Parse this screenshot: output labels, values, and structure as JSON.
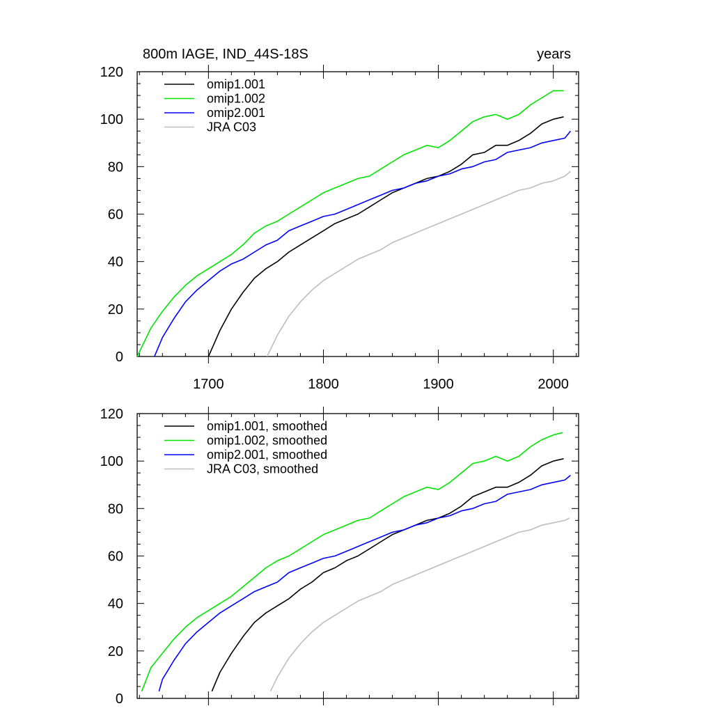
{
  "chart_data": [
    {
      "type": "line",
      "title": "800m IAGE, IND_44S-18S",
      "title_right": "years",
      "xlabel": "",
      "ylabel": "",
      "xlim": [
        1638,
        2022
      ],
      "ylim": [
        0,
        120
      ],
      "xticks": [
        1700,
        1800,
        1900,
        2000
      ],
      "yticks": [
        0,
        20,
        40,
        60,
        80,
        100,
        120
      ],
      "grid": false,
      "legend_position": "top-left",
      "series": [
        {
          "name": "omip1.001",
          "color": "#000000",
          "x": [
            1700,
            1710,
            1720,
            1730,
            1740,
            1750,
            1760,
            1770,
            1780,
            1790,
            1800,
            1810,
            1820,
            1830,
            1840,
            1850,
            1860,
            1870,
            1880,
            1890,
            1900,
            1910,
            1920,
            1930,
            1940,
            1950,
            1960,
            1970,
            1980,
            1990,
            2000,
            2009
          ],
          "y": [
            0,
            11,
            20,
            27,
            33,
            37,
            40,
            44,
            47,
            50,
            53,
            56,
            58,
            60,
            63,
            66,
            69,
            71,
            73,
            75,
            76,
            78,
            81,
            85,
            86,
            89,
            89,
            91,
            94,
            98,
            100,
            101
          ]
        },
        {
          "name": "omip1.002",
          "color": "#00e400",
          "x": [
            1638,
            1650,
            1660,
            1670,
            1680,
            1690,
            1700,
            1710,
            1720,
            1730,
            1740,
            1750,
            1760,
            1770,
            1780,
            1790,
            1800,
            1810,
            1820,
            1830,
            1840,
            1850,
            1860,
            1870,
            1880,
            1890,
            1900,
            1910,
            1920,
            1930,
            1940,
            1950,
            1960,
            1970,
            1980,
            1990,
            2000,
            2009
          ],
          "y": [
            0,
            12,
            19,
            25,
            30,
            34,
            37,
            40,
            43,
            47,
            52,
            55,
            57,
            60,
            63,
            66,
            69,
            71,
            73,
            75,
            76,
            79,
            82,
            85,
            87,
            89,
            88,
            91,
            95,
            99,
            101,
            102,
            100,
            102,
            106,
            109,
            112,
            112
          ]
        },
        {
          "name": "omip2.001",
          "color": "#0000ff",
          "x": [
            1653,
            1660,
            1670,
            1680,
            1690,
            1700,
            1710,
            1720,
            1730,
            1740,
            1750,
            1760,
            1770,
            1780,
            1790,
            1800,
            1810,
            1820,
            1830,
            1840,
            1850,
            1860,
            1870,
            1880,
            1890,
            1900,
            1910,
            1920,
            1930,
            1940,
            1950,
            1960,
            1970,
            1980,
            1990,
            2000,
            2010,
            2015
          ],
          "y": [
            0,
            8,
            16,
            23,
            28,
            32,
            36,
            39,
            41,
            44,
            47,
            49,
            53,
            55,
            57,
            59,
            60,
            62,
            64,
            66,
            68,
            70,
            71,
            73,
            74,
            76,
            77,
            79,
            80,
            82,
            83,
            86,
            87,
            88,
            90,
            91,
            92,
            95
          ]
        },
        {
          "name": "JRA C03",
          "color": "#bdbdbd",
          "x": [
            1751,
            1760,
            1770,
            1780,
            1790,
            1800,
            1810,
            1820,
            1830,
            1840,
            1850,
            1860,
            1870,
            1880,
            1890,
            1900,
            1910,
            1920,
            1930,
            1940,
            1950,
            1960,
            1970,
            1980,
            1990,
            2000,
            2010,
            2015
          ],
          "y": [
            0,
            9,
            17,
            23,
            28,
            32,
            35,
            38,
            41,
            43,
            45,
            48,
            50,
            52,
            54,
            56,
            58,
            60,
            62,
            64,
            66,
            68,
            70,
            71,
            73,
            74,
            76,
            78
          ]
        }
      ]
    },
    {
      "type": "line",
      "title": "",
      "xlabel": "",
      "ylabel": "",
      "xlim": [
        1638,
        2022
      ],
      "ylim": [
        0,
        120
      ],
      "xticks": [
        1700,
        1800,
        1900,
        2000
      ],
      "yticks": [
        0,
        20,
        40,
        60,
        80,
        100,
        120
      ],
      "grid": false,
      "legend_position": "top-left",
      "series": [
        {
          "name": "omip1.001, smoothed",
          "color": "#000000",
          "x": [
            1703,
            1710,
            1720,
            1730,
            1740,
            1750,
            1760,
            1770,
            1780,
            1790,
            1800,
            1810,
            1820,
            1830,
            1840,
            1850,
            1860,
            1870,
            1880,
            1890,
            1900,
            1910,
            1920,
            1930,
            1940,
            1950,
            1960,
            1970,
            1980,
            1990,
            2000,
            2009
          ],
          "y": [
            3,
            11,
            19,
            26,
            32,
            36,
            39,
            42,
            46,
            49,
            53,
            55,
            58,
            60,
            63,
            66,
            69,
            71,
            73,
            75,
            76,
            78,
            81,
            85,
            87,
            89,
            89,
            91,
            94,
            98,
            100,
            101
          ]
        },
        {
          "name": "omip1.002, smoothed",
          "color": "#00e400",
          "x": [
            1642,
            1650,
            1660,
            1670,
            1680,
            1690,
            1700,
            1710,
            1720,
            1730,
            1740,
            1750,
            1760,
            1770,
            1780,
            1790,
            1800,
            1810,
            1820,
            1830,
            1840,
            1850,
            1860,
            1870,
            1880,
            1890,
            1900,
            1910,
            1920,
            1930,
            1940,
            1950,
            1960,
            1970,
            1980,
            1990,
            2000,
            2008
          ],
          "y": [
            3,
            13,
            19,
            25,
            30,
            34,
            37,
            40,
            43,
            47,
            51,
            55,
            58,
            60,
            63,
            66,
            69,
            71,
            73,
            75,
            76,
            79,
            82,
            85,
            87,
            89,
            88,
            91,
            95,
            99,
            100,
            102,
            100,
            102,
            106,
            109,
            111,
            112
          ]
        },
        {
          "name": "omip2.001, smoothed",
          "color": "#0000ff",
          "x": [
            1657,
            1660,
            1670,
            1680,
            1690,
            1700,
            1710,
            1720,
            1730,
            1740,
            1750,
            1760,
            1770,
            1780,
            1790,
            1800,
            1810,
            1820,
            1830,
            1840,
            1850,
            1860,
            1870,
            1880,
            1890,
            1900,
            1910,
            1920,
            1930,
            1940,
            1950,
            1960,
            1970,
            1980,
            1990,
            2000,
            2010,
            2015
          ],
          "y": [
            3,
            8,
            16,
            23,
            28,
            32,
            36,
            39,
            42,
            45,
            47,
            49,
            53,
            55,
            57,
            59,
            60,
            62,
            64,
            66,
            68,
            70,
            71,
            73,
            74,
            76,
            77,
            79,
            80,
            82,
            83,
            86,
            87,
            88,
            90,
            91,
            92,
            94
          ]
        },
        {
          "name": "JRA C03, smoothed",
          "color": "#bdbdbd",
          "x": [
            1754,
            1760,
            1770,
            1780,
            1790,
            1800,
            1810,
            1820,
            1830,
            1840,
            1850,
            1860,
            1870,
            1880,
            1890,
            1900,
            1910,
            1920,
            1930,
            1940,
            1950,
            1960,
            1970,
            1980,
            1990,
            2000,
            2010,
            2014
          ],
          "y": [
            3,
            9,
            17,
            23,
            28,
            32,
            35,
            38,
            41,
            43,
            45,
            48,
            50,
            52,
            54,
            56,
            58,
            60,
            62,
            64,
            66,
            68,
            70,
            71,
            73,
            74,
            75,
            76
          ]
        }
      ]
    }
  ]
}
